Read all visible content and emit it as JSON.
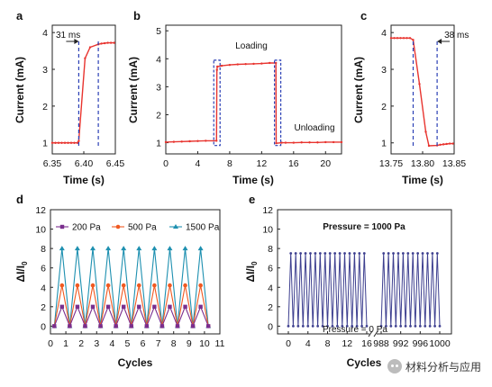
{
  "colors": {
    "red": "#e8342f",
    "blue_dash": "#2a3fb5",
    "purple": "#7a2e8e",
    "orange": "#f05a22",
    "teal": "#1e90b0",
    "navy": "#3d3f8f"
  },
  "watermark": {
    "text": "材料分析与应用",
    "icon": "wechat-icon"
  },
  "chart_data": [
    {
      "panel": "a",
      "type": "line",
      "xlabel": "Time (s)",
      "ylabel": "Current (mA)",
      "xlim": [
        6.35,
        6.45
      ],
      "ylim": [
        0.7,
        4.2
      ],
      "xticks": [
        "6.35",
        "6.40",
        "6.45"
      ],
      "xtick_values": [
        6.35,
        6.4,
        6.45
      ],
      "yticks": [
        "1",
        "2",
        "3",
        "4"
      ],
      "ytick_values": [
        1,
        2,
        3,
        4
      ],
      "annotation": "31 ms",
      "dashed_lines_x": [
        6.392,
        6.423
      ],
      "x": [
        6.35,
        6.355,
        6.36,
        6.365,
        6.37,
        6.375,
        6.38,
        6.385,
        6.39,
        6.392,
        6.402,
        6.41,
        6.423,
        6.428,
        6.433,
        6.438,
        6.443,
        6.448
      ],
      "y": [
        1.0,
        1.0,
        1.0,
        1.0,
        1.0,
        1.0,
        1.0,
        1.0,
        1.0,
        1.05,
        3.3,
        3.6,
        3.68,
        3.7,
        3.71,
        3.72,
        3.72,
        3.72
      ]
    },
    {
      "panel": "b",
      "type": "line",
      "xlabel": "Time (s)",
      "ylabel": "Current (mA)",
      "xlim": [
        0,
        22
      ],
      "ylim": [
        0.6,
        5.2
      ],
      "xticks": [
        "0",
        "4",
        "8",
        "12",
        "16",
        "20"
      ],
      "xtick_values": [
        0,
        4,
        8,
        12,
        16,
        20
      ],
      "yticks": [
        "1",
        "2",
        "3",
        "4",
        "5"
      ],
      "ytick_values": [
        1,
        2,
        3,
        4,
        5
      ],
      "annotations": [
        "Loading",
        "Unloading"
      ],
      "x": [
        0,
        1,
        2,
        3,
        4,
        5,
        6.35,
        6.4,
        6.45,
        7,
        8,
        9,
        10,
        11,
        12,
        13,
        13.79,
        13.82,
        14.5,
        15,
        16,
        17,
        18,
        19,
        20,
        21,
        22
      ],
      "y": [
        1.02,
        1.03,
        1.04,
        1.05,
        1.06,
        1.07,
        1.07,
        3.6,
        3.72,
        3.75,
        3.78,
        3.8,
        3.81,
        3.82,
        3.83,
        3.85,
        3.85,
        0.98,
        1.0,
        1.0,
        1.0,
        1.01,
        1.01,
        1.01,
        1.02,
        1.02,
        1.02
      ]
    },
    {
      "panel": "c",
      "type": "line",
      "xlabel": "Time (s)",
      "ylabel": "Current (mA)",
      "xlim": [
        13.75,
        13.85
      ],
      "ylim": [
        0.7,
        4.2
      ],
      "xticks": [
        "13.75",
        "13.80",
        "13.85"
      ],
      "xtick_values": [
        13.75,
        13.8,
        13.85
      ],
      "yticks": [
        "1",
        "2",
        "3",
        "4"
      ],
      "ytick_values": [
        1,
        2,
        3,
        4
      ],
      "annotation": "38 ms",
      "dashed_lines_x": [
        13.785,
        13.823
      ],
      "x": [
        13.75,
        13.755,
        13.76,
        13.765,
        13.77,
        13.775,
        13.78,
        13.785,
        13.795,
        13.805,
        13.81,
        13.823,
        13.828,
        13.833,
        13.838,
        13.843,
        13.848
      ],
      "y": [
        3.85,
        3.85,
        3.85,
        3.85,
        3.85,
        3.85,
        3.85,
        3.8,
        2.6,
        1.3,
        0.92,
        0.93,
        0.95,
        0.96,
        0.97,
        0.98,
        0.98
      ]
    },
    {
      "panel": "d",
      "type": "line",
      "xlabel": "Cycles",
      "ylabel": "ΔI/I0",
      "ylabel_main": "ΔI/I",
      "ylabel_sub": "0",
      "xlim": [
        0,
        11
      ],
      "ylim": [
        -0.8,
        12
      ],
      "xticks": [
        "0",
        "1",
        "2",
        "3",
        "4",
        "5",
        "6",
        "7",
        "8",
        "9",
        "10",
        "11"
      ],
      "xtick_values": [
        0,
        1,
        2,
        3,
        4,
        5,
        6,
        7,
        8,
        9,
        10,
        11
      ],
      "yticks": [
        "0",
        "2",
        "4",
        "6",
        "8",
        "10",
        "12"
      ],
      "ytick_values": [
        0,
        2,
        4,
        6,
        8,
        10,
        12
      ],
      "series": [
        {
          "name": "200 Pa",
          "peak": 2.0,
          "marker": "square"
        },
        {
          "name": "500 Pa",
          "peak": 4.2,
          "marker": "circle"
        },
        {
          "name": "1500 Pa",
          "peak": 8.0,
          "marker": "triangle"
        }
      ],
      "x": [
        0.25,
        0.75,
        1.25,
        1.75,
        2.25,
        2.75,
        3.25,
        3.75,
        4.25,
        4.75,
        5.25,
        5.75,
        6.25,
        6.75,
        7.25,
        7.75,
        8.25,
        8.75,
        9.25,
        9.75,
        10.25
      ]
    },
    {
      "panel": "e",
      "type": "line",
      "xlabel": "Cycles",
      "ylabel": "ΔI/I0",
      "ylabel_main": "ΔI/I",
      "ylabel_sub": "0",
      "ylim": [
        -0.8,
        12
      ],
      "yticks": [
        "0",
        "2",
        "4",
        "6",
        "8",
        "10",
        "12"
      ],
      "ytick_values": [
        0,
        2,
        4,
        6,
        8,
        10,
        12
      ],
      "xticks": [
        "0",
        "4",
        "8",
        "12",
        "16",
        "988",
        "992",
        "996",
        "1000"
      ],
      "xtick_values": [
        0,
        4,
        8,
        12,
        16,
        988,
        992,
        996,
        1000
      ],
      "segments": [
        [
          0,
          16
        ],
        [
          988,
          1000
        ]
      ],
      "annotations": [
        "Pressure = 1000 Pa",
        "Pressure = 0 Pa"
      ],
      "peak": 7.5,
      "trough": 0,
      "series": [
        {
          "name": "",
          "peak": 7.5
        }
      ]
    }
  ]
}
